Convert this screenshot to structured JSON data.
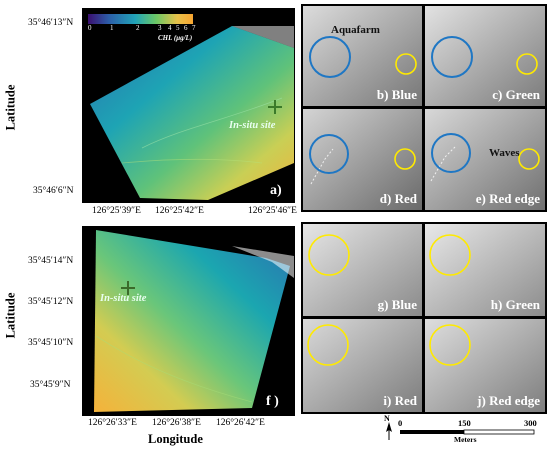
{
  "colorbar": {
    "ticks": [
      "0",
      "1",
      "2",
      "3",
      "4",
      "5",
      "6",
      "7"
    ],
    "unit": "CHL (μg/L)",
    "colors": [
      "#3b0f70",
      "#2c5ea8",
      "#21a3b8",
      "#6cc866",
      "#e7c24a",
      "#f7a531"
    ]
  },
  "map_a": {
    "lat_ticks": [
      "35°46′13″N",
      "35°46′6″N"
    ],
    "lon_ticks": [
      "126°25′39″E",
      "126°25′42″E",
      "126°25′46″E"
    ],
    "site_label": "In-situ site",
    "panel_label": "a)"
  },
  "map_f": {
    "lat_ticks": [
      "35°45′14″N",
      "35°45′12″N",
      "35°45′10″N",
      "35°45′9″N"
    ],
    "lon_ticks": [
      "126°26′33″E",
      "126°26′38″E",
      "126°26′42″E"
    ],
    "site_label": "In-situ site",
    "panel_label": "f )"
  },
  "axes": {
    "ylabel_top": "Latitude",
    "ylabel_bottom": "Latitude",
    "xlabel": "Longitude"
  },
  "thumbs_top": [
    {
      "label": "b) Blue"
    },
    {
      "label": "c) Green"
    },
    {
      "label": "d) Red"
    },
    {
      "label": "e) Red edge"
    }
  ],
  "thumbs_bottom": [
    {
      "label": "g) Blue"
    },
    {
      "label": "h) Green"
    },
    {
      "label": "i) Red"
    },
    {
      "label": "j) Red edge"
    }
  ],
  "annotations": {
    "aquafarm": "Aquafarm",
    "waves": "Waves"
  },
  "scalebar": {
    "north": "N",
    "ticks": [
      "0",
      "150",
      "300"
    ],
    "unit": "Meters"
  },
  "marker_colors": {
    "aquafarm_circle": "#1f77c4",
    "area_circle": "#ffea00"
  }
}
